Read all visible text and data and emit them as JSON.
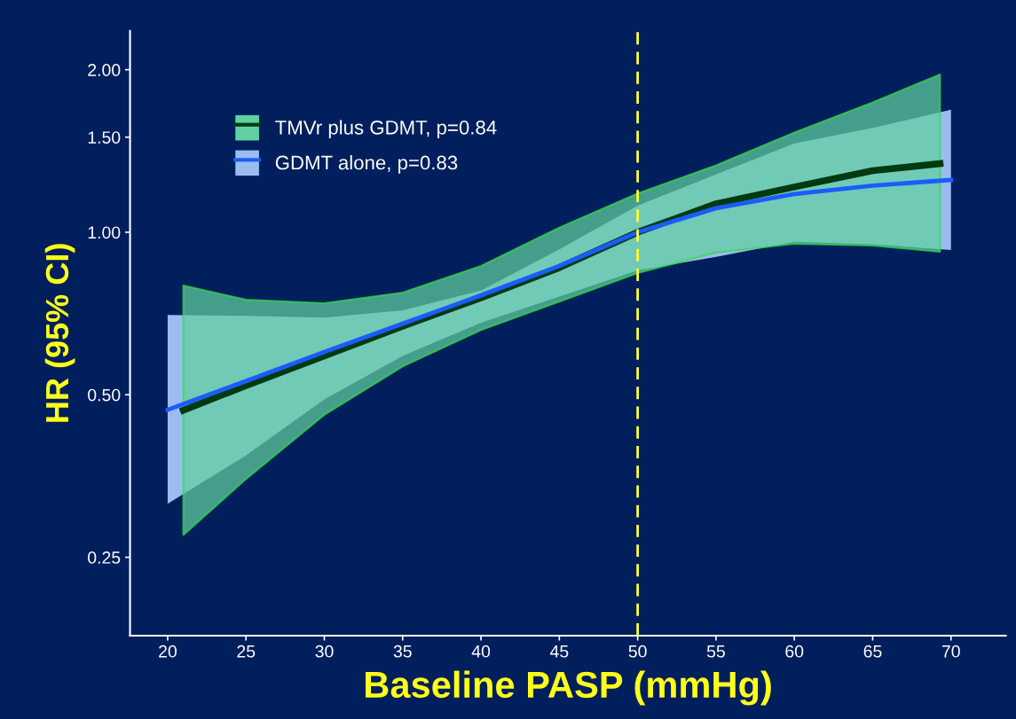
{
  "chart_data": {
    "type": "line",
    "xlabel": "Baseline PASP (mmHg)",
    "ylabel": "HR (95% CI)",
    "log": "y",
    "xlim": [
      17.6,
      73.5
    ],
    "ylim": [
      0.179,
      2.36
    ],
    "xticks": [
      20,
      25,
      30,
      35,
      40,
      45,
      50,
      55,
      60,
      65,
      70
    ],
    "yticks": [
      {
        "value": 0.25,
        "label": "0.25"
      },
      {
        "value": 0.5,
        "label": "0.50"
      },
      {
        "value": 1,
        "label": "1.00"
      },
      {
        "value": 1.5,
        "label": "1.50"
      },
      {
        "value": 2,
        "label": "2.00"
      }
    ],
    "series": [
      {
        "name": "TMVr plus GDMT, p=0.84",
        "color": "#003a10",
        "x": [
          21,
          25,
          30,
          35,
          40,
          45,
          50,
          55,
          60,
          65,
          69.3
        ],
        "values": [
          0.468,
          0.52,
          0.59,
          0.67,
          0.756,
          0.86,
          1.0,
          1.129,
          1.213,
          1.3,
          1.34
        ],
        "lower": [
          0.275,
          0.349,
          0.459,
          0.564,
          0.659,
          0.744,
          0.84,
          0.917,
          0.952,
          0.945,
          0.92
        ],
        "upper": [
          0.797,
          0.75,
          0.739,
          0.773,
          0.866,
          1.02,
          1.18,
          1.33,
          1.53,
          1.74,
          1.96
        ]
      },
      {
        "name": "GDMT alone, p=0.83",
        "color": "#1a5cff",
        "x": [
          20,
          25,
          30,
          35,
          40,
          45,
          50,
          55,
          60,
          65,
          70
        ],
        "values": [
          0.469,
          0.53,
          0.6,
          0.677,
          0.764,
          0.866,
          1.0,
          1.108,
          1.177,
          1.22,
          1.25
        ],
        "lower": [
          0.314,
          0.386,
          0.49,
          0.59,
          0.68,
          0.76,
          0.85,
          0.9,
          0.96,
          0.95,
          0.927
        ],
        "upper": [
          0.703,
          0.7,
          0.695,
          0.717,
          0.78,
          0.93,
          1.12,
          1.28,
          1.46,
          1.56,
          1.687
        ]
      }
    ],
    "ref_lines": [
      {
        "axis": "x",
        "value": 50,
        "color": "#ffff33",
        "line_style": "dashed"
      }
    ],
    "legend": "top left",
    "grid": false
  }
}
